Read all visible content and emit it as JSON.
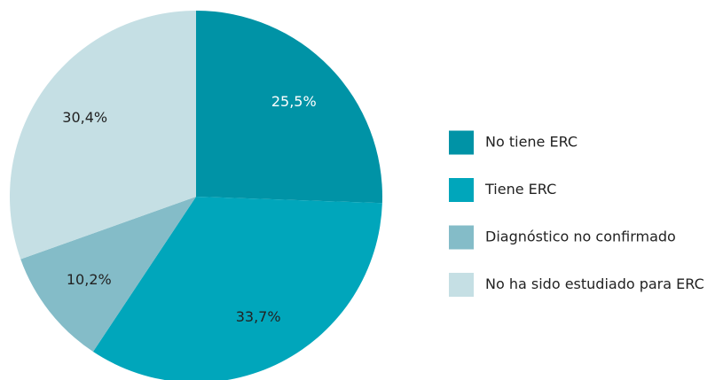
{
  "chart_data": {
    "type": "pie",
    "categories": [
      "No tiene ERC",
      "Tiene ERC",
      "Diagnóstico no confirmado",
      "No ha sido estudiado para ERC"
    ],
    "values": [
      25.5,
      33.7,
      10.2,
      30.4
    ],
    "value_labels": [
      "25,5%",
      "33,7%",
      "10,2%",
      "30,4%"
    ],
    "colors": [
      "#0093a6",
      "#00a6bb",
      "#84bcc8",
      "#c5dfe4"
    ],
    "legend": "right"
  }
}
